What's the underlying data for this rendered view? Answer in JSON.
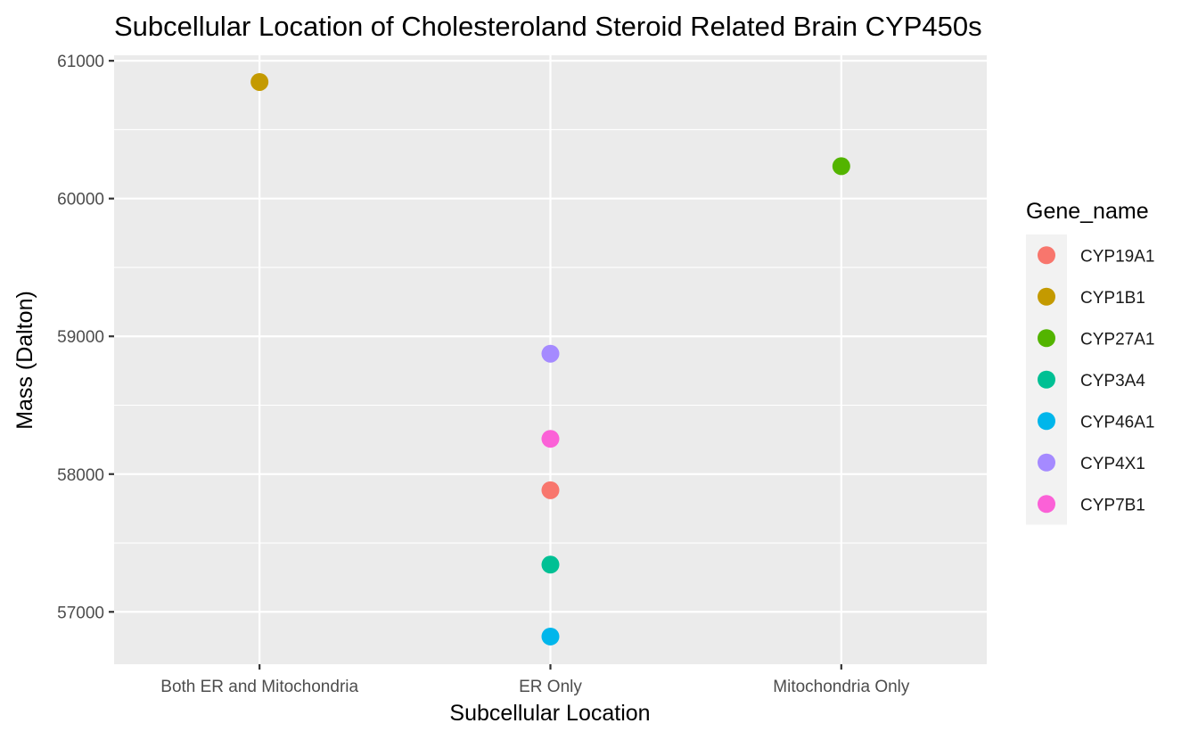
{
  "chart_data": {
    "type": "scatter",
    "title": "Subcellular Location of Cholesteroland Steroid Related Brain CYP450s",
    "xlabel": "Subcellular Location",
    "ylabel": "Mass (Dalton)",
    "categories": [
      "Both ER and Mitochondria",
      "ER Only",
      "Mitochondria Only"
    ],
    "ylim": [
      56620,
      61040
    ],
    "yticks": [
      57000,
      58000,
      59000,
      60000,
      61000
    ],
    "grid": true,
    "legend": {
      "title": "Gene_name",
      "placement": "right"
    },
    "series": [
      {
        "name": "CYP19A1",
        "color": "#F8766D",
        "points": [
          {
            "x": "ER Only",
            "y": 57883
          }
        ]
      },
      {
        "name": "CYP1B1",
        "color": "#C49A00",
        "points": [
          {
            "x": "Both ER and Mitochondria",
            "y": 60846
          }
        ]
      },
      {
        "name": "CYP27A1",
        "color": "#53B400",
        "points": [
          {
            "x": "Mitochondria Only",
            "y": 60235
          }
        ]
      },
      {
        "name": "CYP3A4",
        "color": "#00C094",
        "points": [
          {
            "x": "ER Only",
            "y": 57343
          }
        ]
      },
      {
        "name": "CYP46A1",
        "color": "#00B6EB",
        "points": [
          {
            "x": "ER Only",
            "y": 56821
          }
        ]
      },
      {
        "name": "CYP4X1",
        "color": "#A58AFF",
        "points": [
          {
            "x": "ER Only",
            "y": 58874
          }
        ]
      },
      {
        "name": "CYP7B1",
        "color": "#FB61D7",
        "points": [
          {
            "x": "ER Only",
            "y": 58256
          }
        ]
      }
    ]
  }
}
